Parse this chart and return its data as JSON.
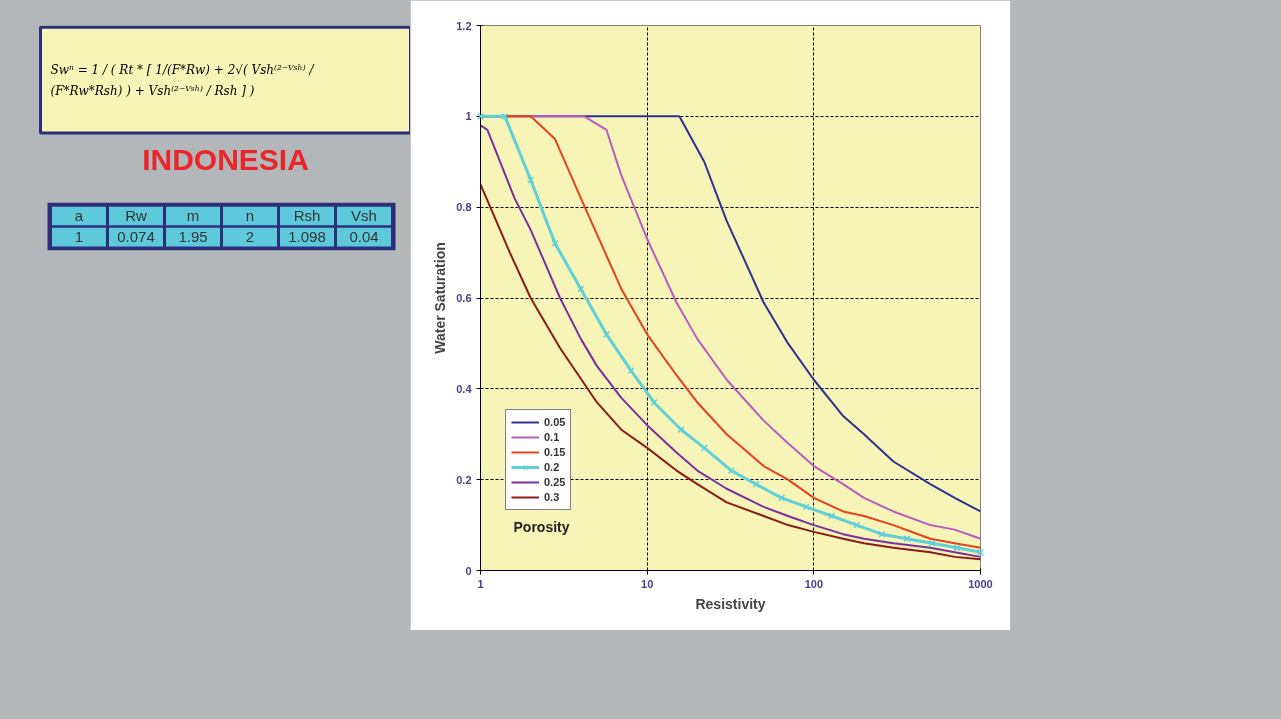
{
  "chart_data": {
    "type": "line",
    "title": "INDONESIA",
    "xlabel": "Resistivity",
    "ylabel": "Water Saturation",
    "legend_title": "Porosity",
    "annotations": [
      "Swⁿ = 1 / ( Rt * [ 1/(F*Rw) + 2√( Vsh⁽²⁻ⱽˢʰ⁾ / (F*Rw*Rsh) ) + Vsh⁽²⁻ⱽˢʰ⁾ / Rsh ] )",
      "a",
      "Rw",
      "m",
      "n",
      "Rsh",
      "Vsh",
      "1",
      "0.074",
      "1.95",
      "2",
      "1.098",
      "0.04"
    ],
    "log": "x",
    "xlim": [
      1,
      1000
    ],
    "xticks": [
      1,
      10,
      100,
      1000
    ],
    "ylim": [
      0,
      1.2
    ],
    "yticks": [
      0,
      0.2,
      0.4,
      0.6,
      0.8,
      1,
      1.2
    ],
    "grid": true,
    "legend": "bottom left",
    "marker": "none",
    "series": [
      {
        "name": "0.05",
        "color": "#2e3192",
        "x": [
          1,
          5,
          10,
          15.6,
          22,
          30,
          50,
          70,
          100,
          150,
          200,
          300,
          500,
          700,
          1000
        ],
        "values": [
          1,
          1,
          1,
          1,
          0.9,
          0.77,
          0.59,
          0.5,
          0.42,
          0.34,
          0.3,
          0.24,
          0.19,
          0.16,
          0.13
        ]
      },
      {
        "name": "0.1",
        "color": "#b65cc0",
        "x": [
          1,
          2,
          4.2,
          5.7,
          7,
          10,
          15,
          20,
          30,
          50,
          70,
          100,
          150,
          200,
          300,
          500,
          700,
          1000
        ],
        "values": [
          1,
          1,
          1,
          0.97,
          0.87,
          0.73,
          0.59,
          0.51,
          0.42,
          0.33,
          0.28,
          0.23,
          0.19,
          0.16,
          0.13,
          0.1,
          0.09,
          0.07
        ]
      },
      {
        "name": "0.15",
        "color": "#e8401c",
        "x": [
          1,
          2,
          2.8,
          4,
          5,
          7,
          10,
          15,
          20,
          30,
          50,
          70,
          100,
          150,
          200,
          300,
          500,
          700,
          1000
        ],
        "values": [
          1,
          1,
          0.95,
          0.82,
          0.74,
          0.62,
          0.52,
          0.43,
          0.37,
          0.3,
          0.23,
          0.2,
          0.16,
          0.13,
          0.12,
          0.1,
          0.07,
          0.06,
          0.05
        ]
      },
      {
        "name": "0.2",
        "color": "#5fd0d8",
        "marker": "cross",
        "x": [
          1,
          1.4,
          2,
          2.8,
          4,
          5.7,
          8,
          11,
          16,
          22,
          32,
          45,
          64,
          90,
          128,
          181,
          256,
          362,
          512,
          724,
          1000
        ],
        "values": [
          1,
          1,
          0.86,
          0.72,
          0.62,
          0.52,
          0.44,
          0.37,
          0.31,
          0.27,
          0.22,
          0.19,
          0.16,
          0.14,
          0.12,
          0.1,
          0.08,
          0.07,
          0.06,
          0.05,
          0.04
        ]
      },
      {
        "name": "0.25",
        "color": "#7b2fa0",
        "x": [
          1,
          1.1,
          1.6,
          2,
          3,
          4,
          5,
          7,
          10,
          15,
          20,
          30,
          50,
          70,
          100,
          150,
          200,
          300,
          500,
          700,
          1000
        ],
        "values": [
          0.98,
          0.97,
          0.82,
          0.75,
          0.6,
          0.51,
          0.45,
          0.38,
          0.32,
          0.26,
          0.22,
          0.18,
          0.14,
          0.12,
          0.1,
          0.08,
          0.07,
          0.06,
          0.05,
          0.04,
          0.03
        ]
      },
      {
        "name": "0.3",
        "color": "#8b1a1a",
        "x": [
          1,
          1.5,
          2,
          3,
          5,
          7,
          10,
          15,
          20,
          30,
          50,
          70,
          100,
          150,
          200,
          300,
          500,
          700,
          1000
        ],
        "values": [
          0.85,
          0.7,
          0.6,
          0.49,
          0.37,
          0.31,
          0.27,
          0.22,
          0.19,
          0.15,
          0.12,
          0.1,
          0.085,
          0.07,
          0.06,
          0.05,
          0.04,
          0.03,
          0.025
        ]
      }
    ]
  }
}
